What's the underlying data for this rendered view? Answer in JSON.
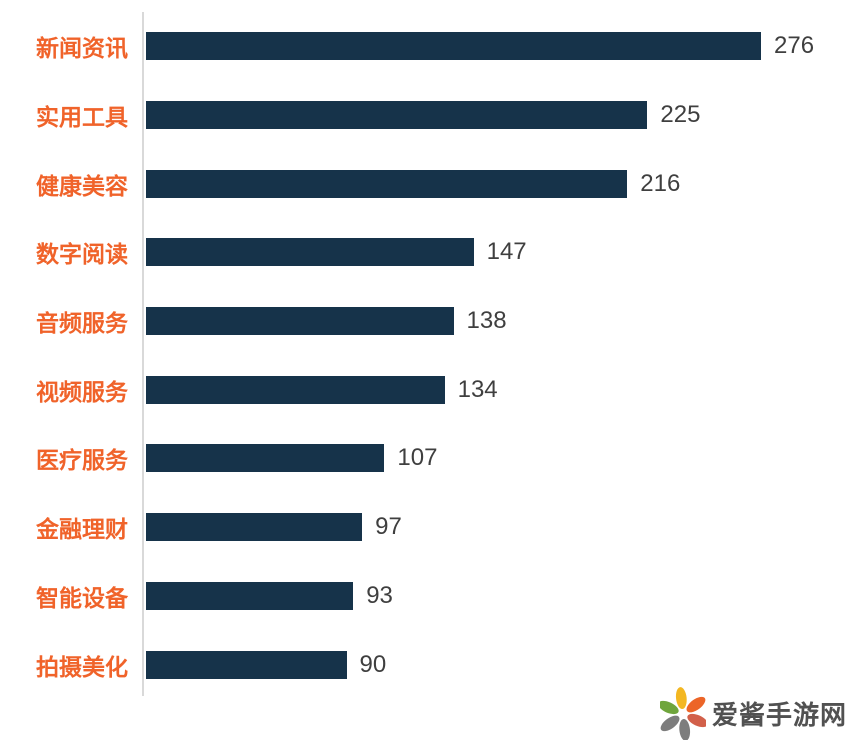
{
  "chart_data": {
    "type": "bar",
    "orientation": "horizontal",
    "title": "",
    "categories": [
      "新闻资讯",
      "实用工具",
      "健康美容",
      "数字阅读",
      "音频服务",
      "视频服务",
      "医疗服务",
      "金融理财",
      "智能设备",
      "拍摄美化"
    ],
    "values": [
      276,
      225,
      216,
      147,
      138,
      134,
      107,
      97,
      93,
      90
    ],
    "xlim": [
      0,
      276
    ],
    "value_labels_shown": true,
    "grid": false,
    "legend": "none"
  },
  "colors": {
    "bar": "#16334a",
    "category_label": "#f0632a",
    "value_label": "#3f3f3f",
    "axis_line": "#d9d9d9",
    "watermark_text": "#515151"
  },
  "watermark": {
    "text": "爱酱手游网",
    "icon": "flower-logo",
    "petal_colors": [
      "#f3b722",
      "#ec6528",
      "#d2604a",
      "#7d7d7d",
      "#7d7d7d",
      "#6fa53c"
    ]
  }
}
